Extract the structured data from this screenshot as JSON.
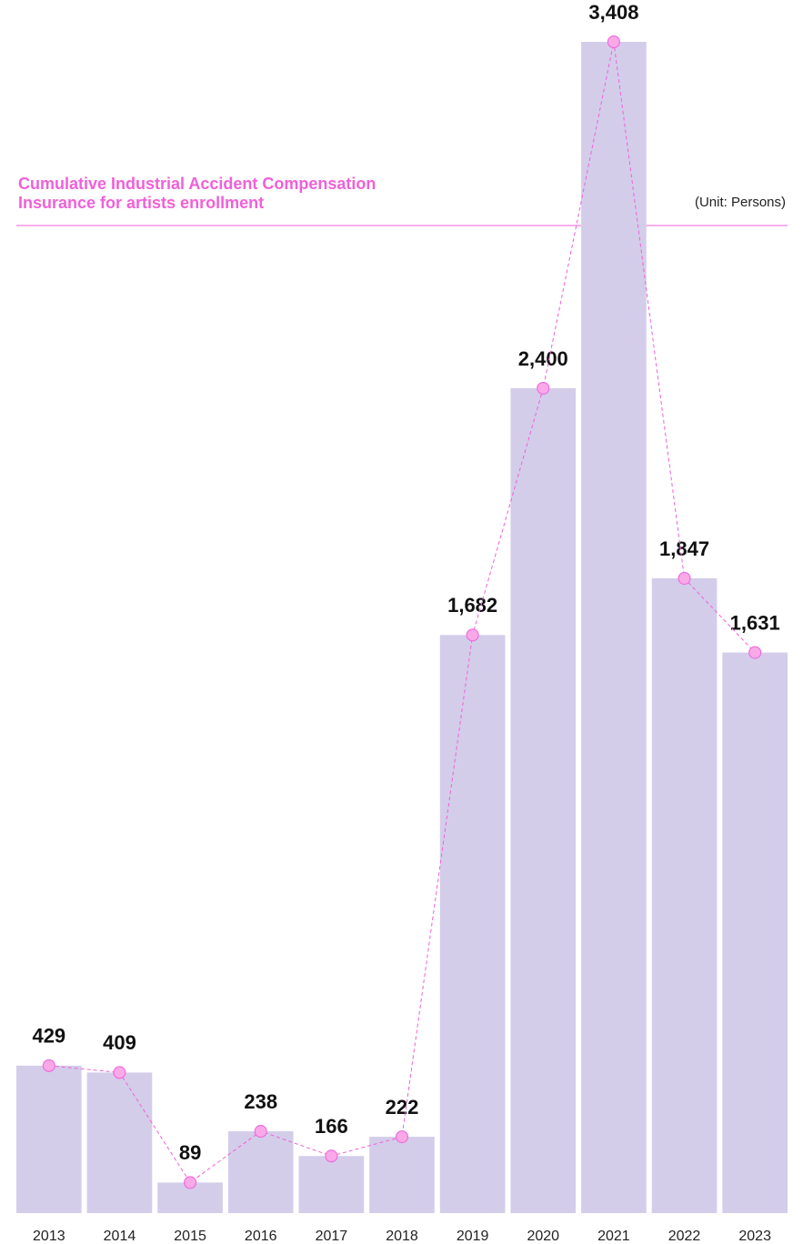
{
  "chart_data": {
    "type": "bar",
    "title": "Cumulative Industrial Accident Compensation Insurance for artists enrollment",
    "unit_label": "(Unit: Persons)",
    "categories": [
      "2013",
      "2014",
      "2015",
      "2016",
      "2017",
      "2018",
      "2019",
      "2020",
      "2021",
      "2022",
      "2023"
    ],
    "values": [
      429,
      409,
      89,
      238,
      166,
      222,
      1682,
      2400,
      3408,
      1847,
      1631
    ],
    "value_labels": [
      "429",
      "409",
      "89",
      "238",
      "166",
      "222",
      "1,682",
      "2,400",
      "3,408",
      "1,847",
      "1,631"
    ],
    "color": "#d3cdea",
    "line_color": "#f060d8",
    "marker_color": "#f9a8e8",
    "ylim": [
      0,
      3408
    ]
  }
}
